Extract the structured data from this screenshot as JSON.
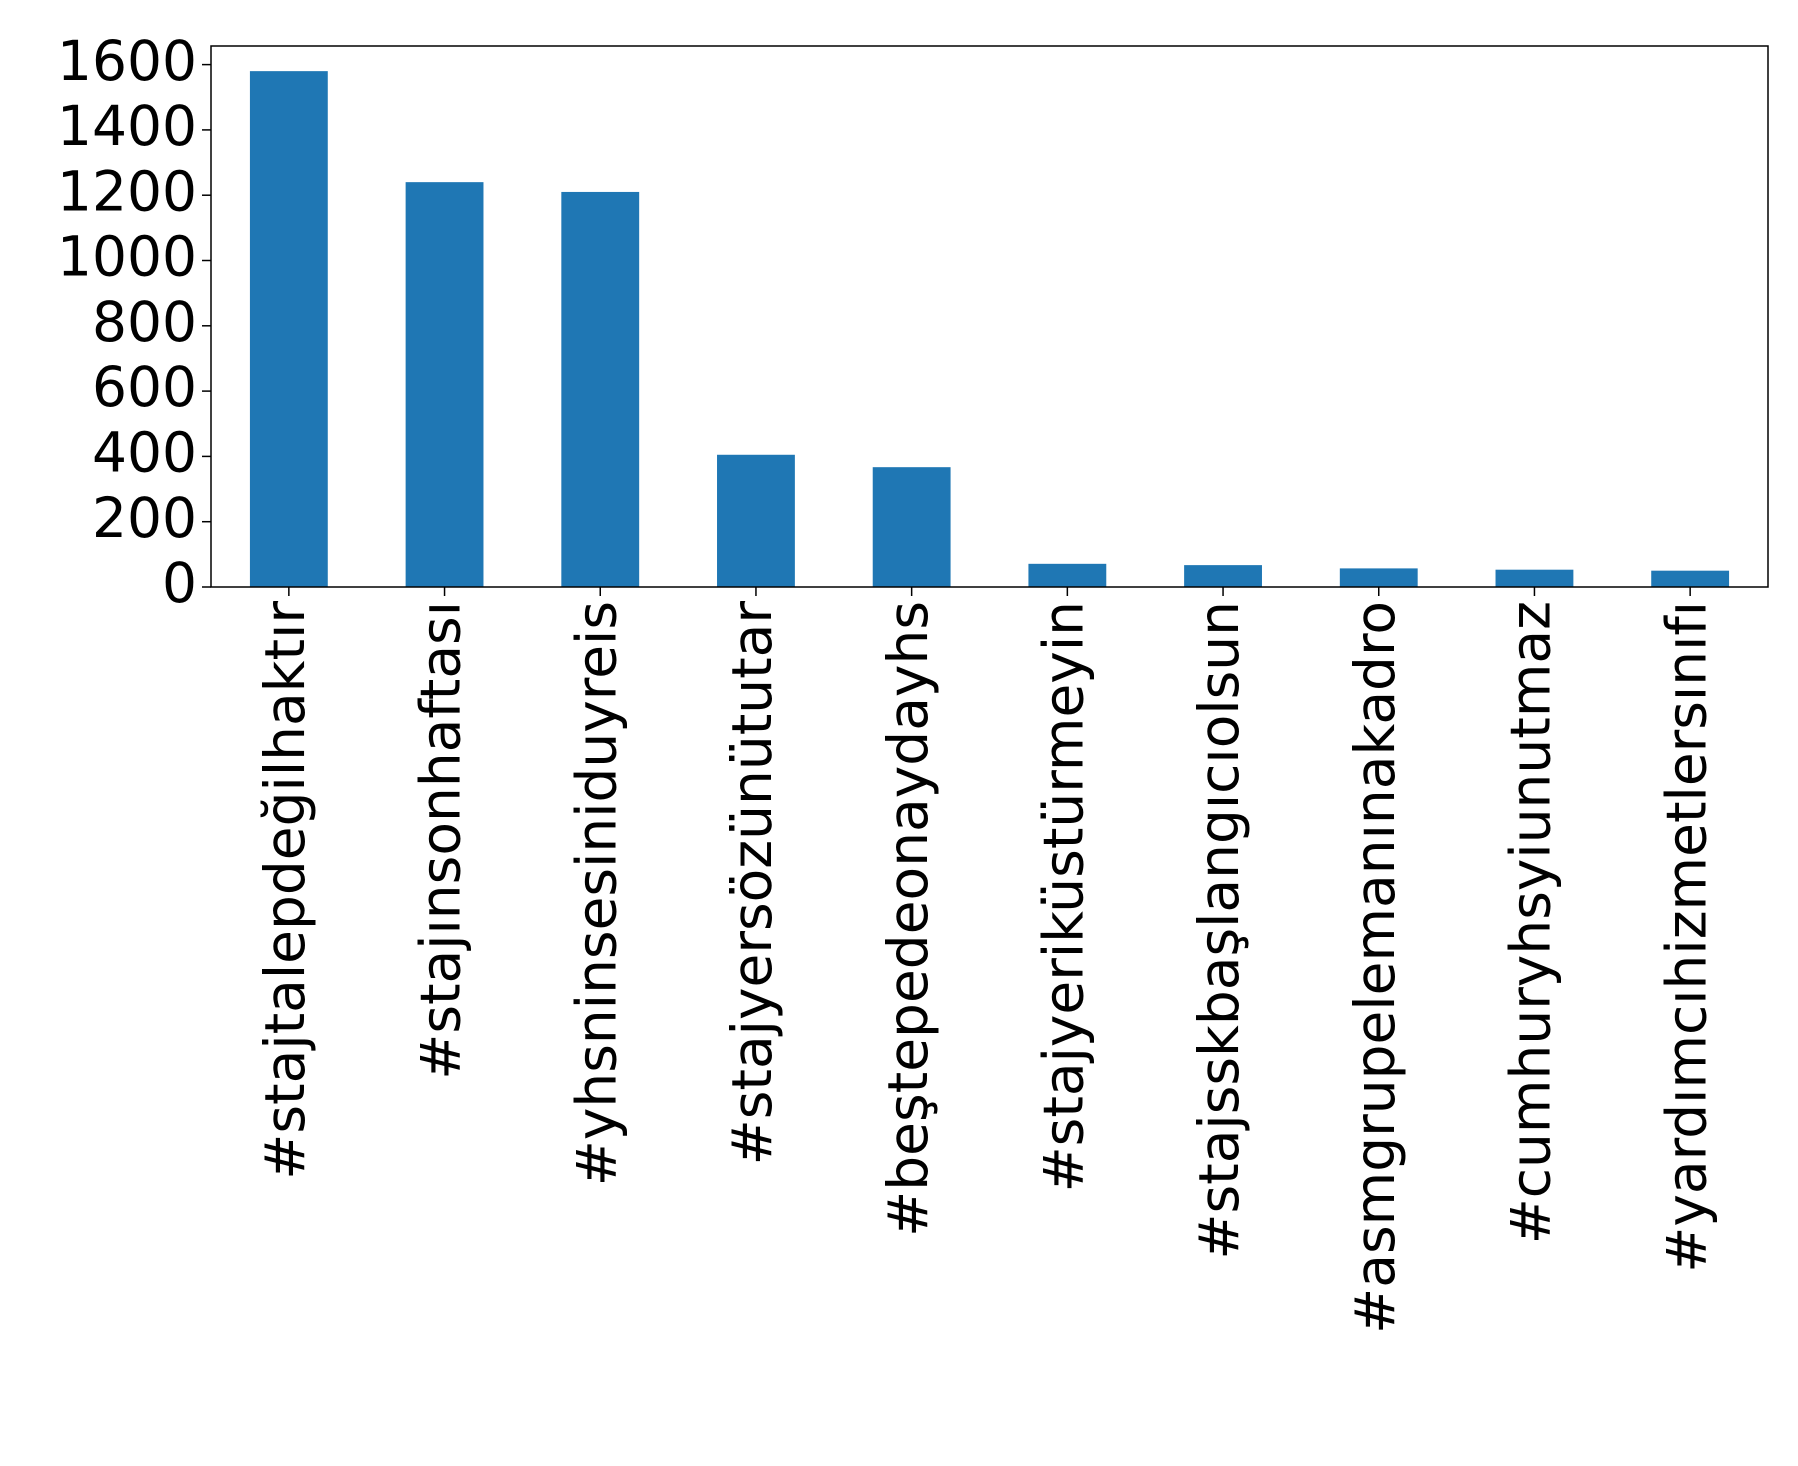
{
  "chart_data": {
    "type": "bar",
    "categories": [
      "#stajtalepdeğilhaktır",
      "#stajınsonhaftası",
      "#yhsninsesiniduyreis",
      "#stajyersözünütutar",
      "#beştepedeonaydayhs",
      "#stajyeriküstürmeyin",
      "#stajsskbaşlangıcıolsun",
      "#asmgrupelemanınakadro",
      "#cumhuryhsyiunutmaz",
      "#yardımcıhizmetlersınıfı"
    ],
    "values": [
      1580,
      1240,
      1210,
      405,
      367,
      71,
      67,
      57,
      53,
      50
    ],
    "color": "#1f77b4",
    "ylim": [
      0,
      1657
    ],
    "yticks": [
      0,
      200,
      400,
      600,
      800,
      1000,
      1200,
      1400,
      1600
    ],
    "grid": false
  }
}
